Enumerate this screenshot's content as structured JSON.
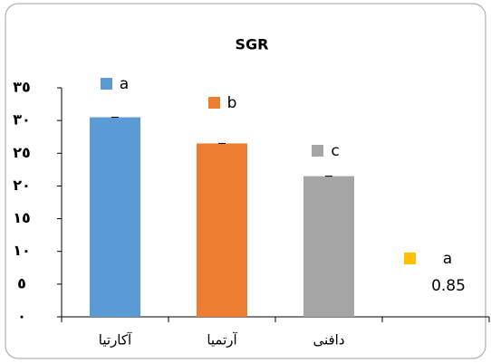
{
  "chart_data": {
    "type": "bar",
    "title": "SGR",
    "categories": [
      "آکارتیا",
      "آرتمیا",
      "دافنی",
      null
    ],
    "values": [
      30.5,
      26.5,
      21.5,
      null
    ],
    "colors": [
      "#5b9bd5",
      "#ed7d31",
      "#a5a5a5",
      "#ffc000"
    ],
    "letters": [
      "a",
      "b",
      "c",
      "a"
    ],
    "annotation": "0.85",
    "ylim": [
      0,
      35
    ],
    "yticks": [
      {
        "value": 0,
        "label": "٠"
      },
      {
        "value": 5,
        "label": "٥"
      },
      {
        "value": 10,
        "label": "١٠"
      },
      {
        "value": 15,
        "label": "١٥"
      },
      {
        "value": 20,
        "label": "٢٠"
      },
      {
        "value": 25,
        "label": "٢٥"
      },
      {
        "value": 30,
        "label": "٣٠"
      },
      {
        "value": 35,
        "label": "٣٥"
      }
    ]
  }
}
